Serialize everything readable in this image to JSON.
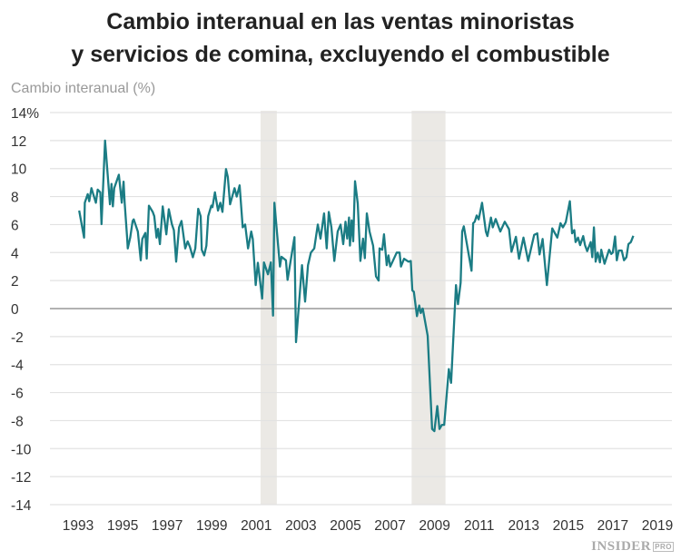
{
  "chart_data": {
    "type": "line",
    "title_line1": "Cambio interanual en las ventas minoristas",
    "title_line2": "y servicios de comina, excluyendo el combustible",
    "ylabel": "Cambio interanual (%)",
    "xlabel": "",
    "ylim": [
      -14,
      14
    ],
    "xlim": [
      1993,
      2019
    ],
    "y_ticks": [
      "14%",
      "12",
      "10",
      "8",
      "6",
      "4",
      "2",
      "0",
      "-2",
      "-4",
      "-6",
      "-8",
      "-10",
      "-12",
      "-14"
    ],
    "y_tick_values": [
      14,
      12,
      10,
      8,
      6,
      4,
      2,
      0,
      -2,
      -4,
      -6,
      -8,
      -10,
      -12,
      -14
    ],
    "x_ticks": [
      "1993",
      "1995",
      "1997",
      "1999",
      "2001",
      "2003",
      "2005",
      "2007",
      "2009",
      "2011",
      "2013",
      "2015",
      "2017",
      "2019"
    ],
    "grid": true,
    "colors": {
      "line": "#1b7c84",
      "recession": "#ebe9e5",
      "grid": "#e2e2e2",
      "zero": "#999999"
    },
    "recessions": [
      [
        2001.19,
        2001.92
      ],
      [
        2007.97,
        2009.49
      ]
    ],
    "series": [
      {
        "points": [
          [
            1993.05,
            7.0
          ],
          [
            1993.27,
            5.07
          ],
          [
            1993.3,
            7.56
          ],
          [
            1993.43,
            8.17
          ],
          [
            1993.5,
            7.67
          ],
          [
            1993.6,
            8.6
          ],
          [
            1993.8,
            7.56
          ],
          [
            1993.88,
            8.5
          ],
          [
            1994.0,
            8.3
          ],
          [
            1994.05,
            6.03
          ],
          [
            1994.21,
            12.0
          ],
          [
            1994.43,
            7.45
          ],
          [
            1994.5,
            8.9
          ],
          [
            1994.56,
            7.3
          ],
          [
            1994.62,
            8.6
          ],
          [
            1994.83,
            9.56
          ],
          [
            1994.96,
            7.56
          ],
          [
            1995.04,
            9.07
          ],
          [
            1995.09,
            7.56
          ],
          [
            1995.2,
            5.07
          ],
          [
            1995.23,
            4.3
          ],
          [
            1995.34,
            5.07
          ],
          [
            1995.45,
            6.26
          ],
          [
            1995.5,
            6.37
          ],
          [
            1995.68,
            5.5
          ],
          [
            1995.81,
            3.45
          ],
          [
            1995.88,
            4.97
          ],
          [
            1996.02,
            5.4
          ],
          [
            1996.08,
            3.57
          ],
          [
            1996.18,
            7.35
          ],
          [
            1996.35,
            6.9
          ],
          [
            1996.42,
            6.6
          ],
          [
            1996.52,
            5.07
          ],
          [
            1996.59,
            5.7
          ],
          [
            1996.67,
            4.6
          ],
          [
            1996.8,
            7.3
          ],
          [
            1996.96,
            5.3
          ],
          [
            1997.07,
            7.1
          ],
          [
            1997.21,
            6.03
          ],
          [
            1997.3,
            5.6
          ],
          [
            1997.4,
            3.35
          ],
          [
            1997.53,
            5.8
          ],
          [
            1997.64,
            6.26
          ],
          [
            1997.81,
            4.3
          ],
          [
            1997.92,
            4.8
          ],
          [
            1998.02,
            4.4
          ],
          [
            1998.15,
            3.66
          ],
          [
            1998.26,
            4.3
          ],
          [
            1998.39,
            7.13
          ],
          [
            1998.5,
            6.6
          ],
          [
            1998.55,
            4.2
          ],
          [
            1998.66,
            3.8
          ],
          [
            1998.76,
            4.5
          ],
          [
            1998.84,
            6.6
          ],
          [
            1998.98,
            7.35
          ],
          [
            1999.03,
            7.24
          ],
          [
            1999.14,
            8.3
          ],
          [
            1999.28,
            7.0
          ],
          [
            1999.38,
            7.56
          ],
          [
            1999.48,
            6.9
          ],
          [
            1999.64,
            9.96
          ],
          [
            1999.72,
            9.4
          ],
          [
            1999.82,
            7.45
          ],
          [
            2000.02,
            8.6
          ],
          [
            2000.12,
            8.0
          ],
          [
            2000.25,
            8.8
          ],
          [
            2000.39,
            5.8
          ],
          [
            2000.5,
            6.0
          ],
          [
            2000.63,
            4.3
          ],
          [
            2000.77,
            5.5
          ],
          [
            2000.84,
            4.97
          ],
          [
            2000.97,
            1.68
          ],
          [
            2001.07,
            3.27
          ],
          [
            2001.26,
            0.71
          ],
          [
            2001.34,
            3.3
          ],
          [
            2001.52,
            2.45
          ],
          [
            2001.65,
            3.3
          ],
          [
            2001.75,
            -0.5
          ],
          [
            2001.81,
            7.56
          ],
          [
            2002.06,
            3.0
          ],
          [
            2002.13,
            3.7
          ],
          [
            2002.33,
            3.45
          ],
          [
            2002.4,
            2.05
          ],
          [
            2002.71,
            5.1
          ],
          [
            2002.78,
            -2.4
          ],
          [
            2003.05,
            3.1
          ],
          [
            2003.19,
            0.5
          ],
          [
            2003.32,
            3.1
          ],
          [
            2003.45,
            4.0
          ],
          [
            2003.6,
            4.3
          ],
          [
            2003.76,
            6.0
          ],
          [
            2003.88,
            5.0
          ],
          [
            2004.04,
            6.8
          ],
          [
            2004.16,
            4.3
          ],
          [
            2004.25,
            6.9
          ],
          [
            2004.37,
            5.8
          ],
          [
            2004.5,
            3.4
          ],
          [
            2004.65,
            5.5
          ],
          [
            2004.78,
            6.0
          ],
          [
            2004.9,
            4.6
          ],
          [
            2005.0,
            6.2
          ],
          [
            2005.08,
            5.0
          ],
          [
            2005.16,
            6.5
          ],
          [
            2005.2,
            4.5
          ],
          [
            2005.28,
            6.3
          ],
          [
            2005.35,
            4.8
          ],
          [
            2005.43,
            9.1
          ],
          [
            2005.55,
            7.5
          ],
          [
            2005.67,
            3.4
          ],
          [
            2005.79,
            5.0
          ],
          [
            2005.87,
            3.6
          ],
          [
            2005.96,
            6.8
          ],
          [
            2006.08,
            5.5
          ],
          [
            2006.24,
            4.5
          ],
          [
            2006.37,
            2.3
          ],
          [
            2006.49,
            2.0
          ],
          [
            2006.53,
            4.3
          ],
          [
            2006.65,
            4.2
          ],
          [
            2006.73,
            5.3
          ],
          [
            2006.85,
            3.1
          ],
          [
            2006.93,
            3.8
          ],
          [
            2007.01,
            3.0
          ],
          [
            2007.3,
            4.0
          ],
          [
            2007.43,
            4.0
          ],
          [
            2007.49,
            3.0
          ],
          [
            2007.63,
            3.56
          ],
          [
            2007.83,
            3.35
          ],
          [
            2007.93,
            3.4
          ],
          [
            2008.0,
            1.3
          ],
          [
            2008.07,
            1.2
          ],
          [
            2008.21,
            -0.54
          ],
          [
            2008.31,
            0.22
          ],
          [
            2008.38,
            -0.32
          ],
          [
            2008.47,
            0.0
          ],
          [
            2008.69,
            -1.94
          ],
          [
            2008.89,
            -8.6
          ],
          [
            2008.99,
            -8.75
          ],
          [
            2009.12,
            -6.96
          ],
          [
            2009.22,
            -8.6
          ],
          [
            2009.33,
            -8.3
          ],
          [
            2009.43,
            -8.3
          ],
          [
            2009.64,
            -4.32
          ],
          [
            2009.74,
            -5.3
          ],
          [
            2009.96,
            1.68
          ],
          [
            2010.05,
            0.32
          ],
          [
            2010.17,
            1.84
          ],
          [
            2010.24,
            5.5
          ],
          [
            2010.31,
            5.88
          ],
          [
            2010.66,
            2.7
          ],
          [
            2010.73,
            6.1
          ],
          [
            2010.8,
            6.2
          ],
          [
            2010.89,
            6.65
          ],
          [
            2010.98,
            6.37
          ],
          [
            2011.13,
            7.56
          ],
          [
            2011.3,
            5.5
          ],
          [
            2011.37,
            5.18
          ],
          [
            2011.53,
            6.5
          ],
          [
            2011.61,
            5.8
          ],
          [
            2011.74,
            6.4
          ],
          [
            2011.95,
            5.5
          ],
          [
            2012.15,
            6.2
          ],
          [
            2012.34,
            5.67
          ],
          [
            2012.45,
            4.06
          ],
          [
            2012.65,
            5.13
          ],
          [
            2012.79,
            3.56
          ],
          [
            2012.99,
            5.07
          ],
          [
            2013.2,
            3.4
          ],
          [
            2013.47,
            5.26
          ],
          [
            2013.61,
            5.37
          ],
          [
            2013.71,
            3.86
          ],
          [
            2013.85,
            4.97
          ],
          [
            2014.04,
            1.68
          ],
          [
            2014.28,
            5.73
          ],
          [
            2014.51,
            5.07
          ],
          [
            2014.65,
            6.1
          ],
          [
            2014.76,
            5.8
          ],
          [
            2014.89,
            6.17
          ],
          [
            2015.07,
            7.67
          ],
          [
            2015.17,
            5.37
          ],
          [
            2015.27,
            5.6
          ],
          [
            2015.33,
            4.75
          ],
          [
            2015.44,
            5.07
          ],
          [
            2015.53,
            4.53
          ],
          [
            2015.67,
            5.18
          ],
          [
            2015.75,
            4.53
          ],
          [
            2015.85,
            4.1
          ],
          [
            2016.01,
            4.75
          ],
          [
            2016.08,
            3.67
          ],
          [
            2016.15,
            5.8
          ],
          [
            2016.23,
            3.35
          ],
          [
            2016.32,
            4.0
          ],
          [
            2016.42,
            3.3
          ],
          [
            2016.48,
            4.2
          ],
          [
            2016.63,
            3.2
          ],
          [
            2016.83,
            4.2
          ],
          [
            2016.93,
            3.9
          ],
          [
            2017.0,
            4.0
          ],
          [
            2017.1,
            5.15
          ],
          [
            2017.18,
            3.45
          ],
          [
            2017.27,
            4.15
          ],
          [
            2017.4,
            4.15
          ],
          [
            2017.5,
            3.45
          ],
          [
            2017.61,
            3.67
          ],
          [
            2017.7,
            4.6
          ],
          [
            2017.81,
            4.75
          ],
          [
            2017.92,
            5.2
          ]
        ]
      }
    ]
  },
  "branding": {
    "logo": "INSIDER",
    "logo_sub": "PRO"
  }
}
